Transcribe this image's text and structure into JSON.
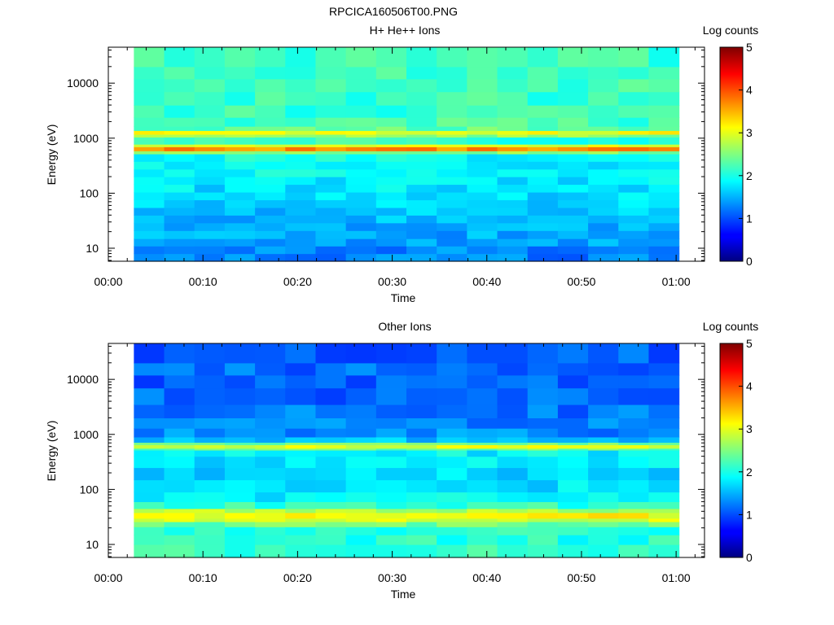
{
  "figure": {
    "title": "RPCICA160506T00.PNG"
  },
  "chart_data": [
    {
      "type": "heatmap",
      "title": "H+ He++ Ions",
      "xlabel": "Time",
      "ylabel": "Energy (eV)",
      "xticks": [
        "00:00",
        "00:10",
        "00:20",
        "00:30",
        "00:40",
        "00:50",
        "01:00"
      ],
      "xlim_minutes": [
        0,
        63
      ],
      "yscale": "log",
      "ylim": [
        5.8,
        45000
      ],
      "yticks": [
        "10",
        "100",
        "1000",
        "10000"
      ],
      "colorbar": {
        "label": "Log counts",
        "range": [
          0,
          5
        ],
        "ticks": [
          "0",
          "1",
          "2",
          "3",
          "4",
          "5"
        ]
      },
      "time_start_min": 2.7,
      "time_step_min": 3.2,
      "n_columns": 18,
      "bands": [
        {
          "e_lo": 5.8,
          "e_hi": 8,
          "value": 1.25
        },
        {
          "e_lo": 8,
          "e_hi": 11,
          "value": 1.3
        },
        {
          "e_lo": 11,
          "e_hi": 15,
          "value": 1.4
        },
        {
          "e_lo": 15,
          "e_hi": 21,
          "value": 1.45
        },
        {
          "e_lo": 21,
          "e_hi": 29,
          "value": 1.5
        },
        {
          "e_lo": 29,
          "e_hi": 40,
          "value": 1.55
        },
        {
          "e_lo": 40,
          "e_hi": 55,
          "value": 1.6
        },
        {
          "e_lo": 55,
          "e_hi": 76,
          "value": 1.65
        },
        {
          "e_lo": 76,
          "e_hi": 105,
          "value": 1.7
        },
        {
          "e_lo": 105,
          "e_hi": 145,
          "value": 1.75
        },
        {
          "e_lo": 145,
          "e_hi": 200,
          "value": 1.8
        },
        {
          "e_lo": 200,
          "e_hi": 275,
          "value": 1.85
        },
        {
          "e_lo": 275,
          "e_hi": 380,
          "value": 1.85
        },
        {
          "e_lo": 380,
          "e_hi": 520,
          "value": 1.9
        },
        {
          "e_lo": 520,
          "e_hi": 590,
          "value": 2.55
        },
        {
          "e_lo": 590,
          "e_hi": 700,
          "value": 3.7
        },
        {
          "e_lo": 700,
          "e_hi": 780,
          "value": 3.0
        },
        {
          "e_lo": 780,
          "e_hi": 1050,
          "value": 2.1
        },
        {
          "e_lo": 1050,
          "e_hi": 1180,
          "value": 2.6
        },
        {
          "e_lo": 1180,
          "e_hi": 1380,
          "value": 3.05
        },
        {
          "e_lo": 1380,
          "e_hi": 1650,
          "value": 2.35
        },
        {
          "e_lo": 1650,
          "e_hi": 2400,
          "value": 2.2
        },
        {
          "e_lo": 2400,
          "e_hi": 4000,
          "value": 2.15
        },
        {
          "e_lo": 4000,
          "e_hi": 7000,
          "value": 2.15
        },
        {
          "e_lo": 7000,
          "e_hi": 12000,
          "value": 2.2
        },
        {
          "e_lo": 12000,
          "e_hi": 20000,
          "value": 2.2
        },
        {
          "e_lo": 20000,
          "e_hi": 45000,
          "value": 2.15
        }
      ]
    },
    {
      "type": "heatmap",
      "title": "Other Ions",
      "xlabel": "Time",
      "ylabel": "Energy (eV)",
      "xticks": [
        "00:00",
        "00:10",
        "00:20",
        "00:30",
        "00:40",
        "00:50",
        "01:00"
      ],
      "xlim_minutes": [
        0,
        63
      ],
      "yscale": "log",
      "ylim": [
        5.8,
        45000
      ],
      "yticks": [
        "10",
        "100",
        "1000",
        "10000"
      ],
      "colorbar": {
        "label": "Log counts",
        "range": [
          0,
          5
        ],
        "ticks": [
          "0",
          "1",
          "2",
          "3",
          "4",
          "5"
        ]
      },
      "time_start_min": 2.7,
      "time_step_min": 3.2,
      "n_columns": 18,
      "bands": [
        {
          "e_lo": 5.8,
          "e_hi": 10,
          "value": 2.1
        },
        {
          "e_lo": 10,
          "e_hi": 15,
          "value": 2.05
        },
        {
          "e_lo": 15,
          "e_hi": 21,
          "value": 2.1
        },
        {
          "e_lo": 21,
          "e_hi": 26,
          "value": 2.4
        },
        {
          "e_lo": 26,
          "e_hi": 30,
          "value": 2.9
        },
        {
          "e_lo": 30,
          "e_hi": 38,
          "value": 3.1
        },
        {
          "e_lo": 38,
          "e_hi": 45,
          "value": 2.75
        },
        {
          "e_lo": 45,
          "e_hi": 60,
          "value": 2.1
        },
        {
          "e_lo": 60,
          "e_hi": 90,
          "value": 1.85
        },
        {
          "e_lo": 90,
          "e_hi": 150,
          "value": 1.75
        },
        {
          "e_lo": 150,
          "e_hi": 250,
          "value": 1.7
        },
        {
          "e_lo": 250,
          "e_hi": 400,
          "value": 1.75
        },
        {
          "e_lo": 400,
          "e_hi": 520,
          "value": 1.85
        },
        {
          "e_lo": 520,
          "e_hi": 560,
          "value": 2.4
        },
        {
          "e_lo": 560,
          "e_hi": 650,
          "value": 2.95
        },
        {
          "e_lo": 650,
          "e_hi": 720,
          "value": 2.4
        },
        {
          "e_lo": 720,
          "e_hi": 900,
          "value": 1.6
        },
        {
          "e_lo": 900,
          "e_hi": 1300,
          "value": 1.3
        },
        {
          "e_lo": 1300,
          "e_hi": 2000,
          "value": 1.3
        },
        {
          "e_lo": 2000,
          "e_hi": 3500,
          "value": 1.2
        },
        {
          "e_lo": 3500,
          "e_hi": 7000,
          "value": 1.15
        },
        {
          "e_lo": 7000,
          "e_hi": 12000,
          "value": 1.1
        },
        {
          "e_lo": 12000,
          "e_hi": 20000,
          "value": 1.15
        },
        {
          "e_lo": 20000,
          "e_hi": 45000,
          "value": 1.1
        }
      ]
    }
  ]
}
